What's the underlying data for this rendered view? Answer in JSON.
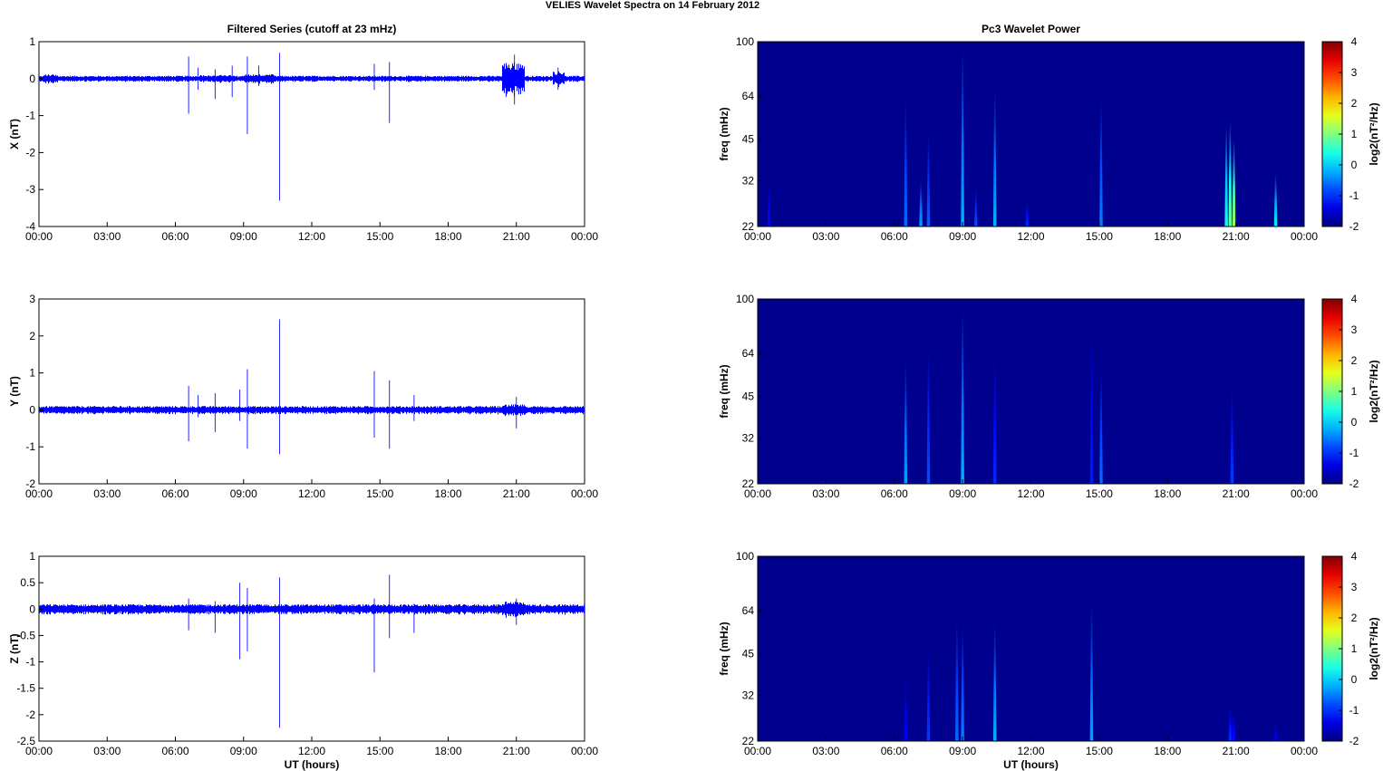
{
  "figure": {
    "title": "VELIES Wavelet Spectra on 14 February  2012",
    "colors": {
      "trace": "#0000ff",
      "background": "#00008f",
      "frame": "#000000"
    }
  },
  "chart_data": [
    {
      "type": "line",
      "id": "series-x",
      "title": "Filtered Series (cutoff at 23 mHz)",
      "xlabel": "",
      "ylabel": "X (nT)",
      "xlim": [
        "00:00",
        "24:00"
      ],
      "xticks": [
        "00:00",
        "03:00",
        "06:00",
        "09:00",
        "12:00",
        "15:00",
        "18:00",
        "21:00",
        "00:00"
      ],
      "ylim": [
        -4,
        1
      ],
      "yticks": [
        "1",
        "0",
        "-1",
        "-2",
        "-3",
        "-4"
      ],
      "noise_amplitude": 0.06,
      "bursts": [
        {
          "t": "00:30",
          "amp": 0.12,
          "dur_min": 20
        },
        {
          "t": "07:45",
          "amp": 0.1,
          "dur_min": 40
        },
        {
          "t": "09:40",
          "amp": 0.12,
          "dur_min": 40
        },
        {
          "t": "20:50",
          "amp": 0.45,
          "dur_min": 30
        },
        {
          "t": "22:50",
          "amp": 0.2,
          "dur_min": 15
        }
      ],
      "spikes": [
        {
          "t": "06:35",
          "min": -0.95,
          "max": 0.6
        },
        {
          "t": "07:00",
          "min": -0.3,
          "max": 0.3
        },
        {
          "t": "07:45",
          "min": -0.55,
          "max": 0.25
        },
        {
          "t": "08:30",
          "min": -0.5,
          "max": 0.35
        },
        {
          "t": "09:10",
          "min": -1.5,
          "max": 0.6
        },
        {
          "t": "09:40",
          "min": -0.2,
          "max": 0.35
        },
        {
          "t": "10:35",
          "min": -3.3,
          "max": 0.7
        },
        {
          "t": "14:45",
          "min": -0.3,
          "max": 0.4
        },
        {
          "t": "15:25",
          "min": -1.2,
          "max": 0.45
        },
        {
          "t": "20:55",
          "min": -0.7,
          "max": 0.65
        },
        {
          "t": "22:50",
          "min": -0.3,
          "max": 0.3
        }
      ]
    },
    {
      "type": "heatmap",
      "id": "power-x",
      "title": "Pc3 Wavelet Power",
      "xlabel": "",
      "ylabel": "freq (mHz)",
      "xticks": [
        "00:00",
        "03:00",
        "06:00",
        "09:00",
        "12:00",
        "15:00",
        "18:00",
        "21:00",
        "00:00"
      ],
      "yticks": [
        100,
        64,
        45,
        32,
        22
      ],
      "ylim": [
        22,
        100
      ],
      "yscale": "log",
      "colorbar_label": "log2(nT²/Hz)",
      "colorbar_ticks": [
        4,
        3,
        2,
        1,
        0,
        -1,
        -2
      ],
      "clim": [
        -2,
        4
      ],
      "events": [
        {
          "t": "00:30",
          "fmax": 32,
          "level": -1.2
        },
        {
          "t": "06:30",
          "fmax": 62,
          "level": -0.6
        },
        {
          "t": "07:10",
          "fmax": 32,
          "level": -0.3
        },
        {
          "t": "07:30",
          "fmax": 48,
          "level": -0.7
        },
        {
          "t": "09:00",
          "fmax": 95,
          "level": -0.2
        },
        {
          "t": "09:35",
          "fmax": 30,
          "level": -0.8
        },
        {
          "t": "10:25",
          "fmax": 68,
          "level": -0.2
        },
        {
          "t": "11:50",
          "fmax": 27,
          "level": -1.0
        },
        {
          "t": "15:05",
          "fmax": 62,
          "level": -0.5
        },
        {
          "t": "20:35",
          "fmax": 50,
          "level": 0.4
        },
        {
          "t": "20:45",
          "fmax": 52,
          "level": 0.9
        },
        {
          "t": "20:55",
          "fmax": 45,
          "level": 1.2
        },
        {
          "t": "22:45",
          "fmax": 34,
          "level": 0.2
        }
      ]
    },
    {
      "type": "line",
      "id": "series-y",
      "title": "",
      "xlabel": "",
      "ylabel": "Y (nT)",
      "xlim": [
        "00:00",
        "24:00"
      ],
      "xticks": [
        "00:00",
        "03:00",
        "06:00",
        "09:00",
        "12:00",
        "15:00",
        "18:00",
        "21:00",
        "00:00"
      ],
      "ylim": [
        -2,
        3
      ],
      "yticks": [
        "3",
        "2",
        "1",
        "0",
        "-1",
        "-2"
      ],
      "noise_amplitude": 0.08,
      "bursts": [
        {
          "t": "20:50",
          "amp": 0.15,
          "dur_min": 30
        }
      ],
      "spikes": [
        {
          "t": "06:35",
          "min": -0.85,
          "max": 0.65
        },
        {
          "t": "07:00",
          "min": -0.2,
          "max": 0.4
        },
        {
          "t": "07:45",
          "min": -0.6,
          "max": 0.45
        },
        {
          "t": "08:50",
          "min": -0.3,
          "max": 0.55
        },
        {
          "t": "09:10",
          "min": -1.05,
          "max": 1.1
        },
        {
          "t": "10:35",
          "min": -1.2,
          "max": 2.45
        },
        {
          "t": "14:45",
          "min": -0.75,
          "max": 1.05
        },
        {
          "t": "15:25",
          "min": -1.05,
          "max": 0.8
        },
        {
          "t": "16:30",
          "min": -0.3,
          "max": 0.4
        },
        {
          "t": "21:00",
          "min": -0.5,
          "max": 0.35
        }
      ]
    },
    {
      "type": "heatmap",
      "id": "power-y",
      "title": "",
      "xlabel": "",
      "ylabel": "freq (mHz)",
      "xticks": [
        "00:00",
        "03:00",
        "06:00",
        "09:00",
        "12:00",
        "15:00",
        "18:00",
        "21:00",
        "00:00"
      ],
      "yticks": [
        100,
        64,
        45,
        32,
        22
      ],
      "ylim": [
        22,
        100
      ],
      "yscale": "log",
      "colorbar_label": "log2(nT²/Hz)",
      "colorbar_ticks": [
        4,
        3,
        2,
        1,
        0,
        -1,
        -2
      ],
      "clim": [
        -2,
        4
      ],
      "events": [
        {
          "t": "06:30",
          "fmax": 60,
          "level": -0.3
        },
        {
          "t": "07:30",
          "fmax": 66,
          "level": -0.8
        },
        {
          "t": "09:00",
          "fmax": 92,
          "level": -0.2
        },
        {
          "t": "10:25",
          "fmax": 66,
          "level": -1.0
        },
        {
          "t": "14:40",
          "fmax": 80,
          "level": -1.1
        },
        {
          "t": "15:05",
          "fmax": 55,
          "level": -0.6
        },
        {
          "t": "20:50",
          "fmax": 48,
          "level": -0.9
        }
      ]
    },
    {
      "type": "line",
      "id": "series-z",
      "title": "",
      "xlabel": "UT (hours)",
      "ylabel": "Z (nT)",
      "xlim": [
        "00:00",
        "24:00"
      ],
      "xticks": [
        "00:00",
        "03:00",
        "06:00",
        "09:00",
        "12:00",
        "15:00",
        "18:00",
        "21:00",
        "00:00"
      ],
      "ylim": [
        -2.5,
        1
      ],
      "yticks": [
        "1",
        "0.5",
        "0",
        "-0.5",
        "-1",
        "-1.5",
        "-2",
        "-2.5"
      ],
      "noise_amplitude": 0.07,
      "bursts": [
        {
          "t": "20:50",
          "amp": 0.15,
          "dur_min": 30
        }
      ],
      "spikes": [
        {
          "t": "06:35",
          "min": -0.4,
          "max": 0.2
        },
        {
          "t": "07:45",
          "min": -0.45,
          "max": 0.15
        },
        {
          "t": "08:50",
          "min": -0.95,
          "max": 0.5
        },
        {
          "t": "09:10",
          "min": -0.8,
          "max": 0.4
        },
        {
          "t": "10:35",
          "min": -2.25,
          "max": 0.6
        },
        {
          "t": "14:45",
          "min": -1.2,
          "max": 0.2
        },
        {
          "t": "15:25",
          "min": -0.55,
          "max": 0.65
        },
        {
          "t": "16:30",
          "min": -0.45,
          "max": 0.1
        },
        {
          "t": "21:00",
          "min": -0.3,
          "max": 0.2
        }
      ]
    },
    {
      "type": "heatmap",
      "id": "power-z",
      "title": "",
      "xlabel": "UT (hours)",
      "ylabel": "freq (mHz)",
      "xticks": [
        "00:00",
        "03:00",
        "06:00",
        "09:00",
        "12:00",
        "15:00",
        "18:00",
        "21:00",
        "00:00"
      ],
      "yticks": [
        100,
        64,
        45,
        32,
        22
      ],
      "ylim": [
        22,
        100
      ],
      "yscale": "log",
      "colorbar_label": "log2(nT²/Hz)",
      "colorbar_ticks": [
        4,
        3,
        2,
        1,
        0,
        -1,
        -2
      ],
      "clim": [
        -2,
        4
      ],
      "events": [
        {
          "t": "06:30",
          "fmax": 38,
          "level": -1.3
        },
        {
          "t": "07:30",
          "fmax": 46,
          "level": -0.9
        },
        {
          "t": "08:45",
          "fmax": 60,
          "level": -0.6
        },
        {
          "t": "09:00",
          "fmax": 56,
          "level": -0.5
        },
        {
          "t": "10:25",
          "fmax": 58,
          "level": -0.2
        },
        {
          "t": "14:40",
          "fmax": 68,
          "level": -0.3
        },
        {
          "t": "20:45",
          "fmax": 30,
          "level": -1.0
        },
        {
          "t": "20:55",
          "fmax": 28,
          "level": -1.2
        },
        {
          "t": "22:45",
          "fmax": 26,
          "level": -1.4
        }
      ]
    }
  ]
}
